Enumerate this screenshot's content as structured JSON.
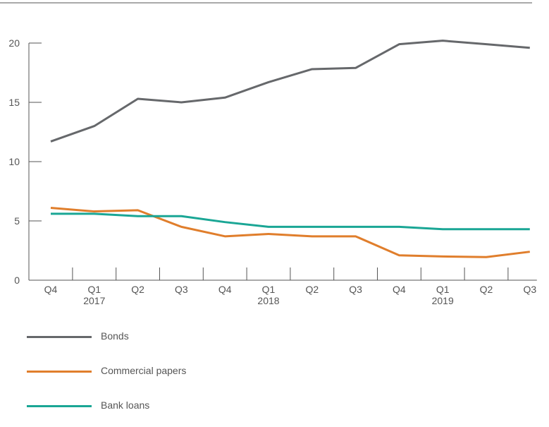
{
  "chart_data": {
    "type": "line",
    "title": "",
    "xlabel": "",
    "ylabel": "",
    "categories": [
      "Q4",
      "Q1",
      "Q2",
      "Q3",
      "Q4",
      "Q1",
      "Q2",
      "Q3",
      "Q4",
      "Q1",
      "Q2",
      "Q3"
    ],
    "year_labels": [
      "",
      "2017",
      "",
      "",
      "",
      "2018",
      "",
      "",
      "",
      "2019",
      "",
      ""
    ],
    "ylim": [
      0,
      20
    ],
    "yticks": [
      "0",
      "5",
      "10",
      "15",
      "20"
    ],
    "grid": false,
    "legend_position": "bottom-left",
    "series": [
      {
        "name": "Bonds",
        "color": "#66686b",
        "values": [
          11.7,
          13.0,
          15.3,
          15.0,
          15.4,
          16.7,
          17.8,
          17.9,
          19.9,
          20.2,
          19.9,
          19.6
        ]
      },
      {
        "name": "Commercial papers",
        "color": "#e07e2c",
        "values": [
          6.1,
          5.8,
          5.9,
          4.5,
          3.7,
          3.9,
          3.7,
          3.7,
          2.1,
          2.0,
          1.95,
          2.4
        ]
      },
      {
        "name": "Bank loans",
        "color": "#1aa695",
        "values": [
          5.6,
          5.6,
          5.4,
          5.4,
          4.9,
          4.5,
          4.5,
          4.5,
          4.5,
          4.3,
          4.3,
          4.3
        ]
      }
    ]
  }
}
